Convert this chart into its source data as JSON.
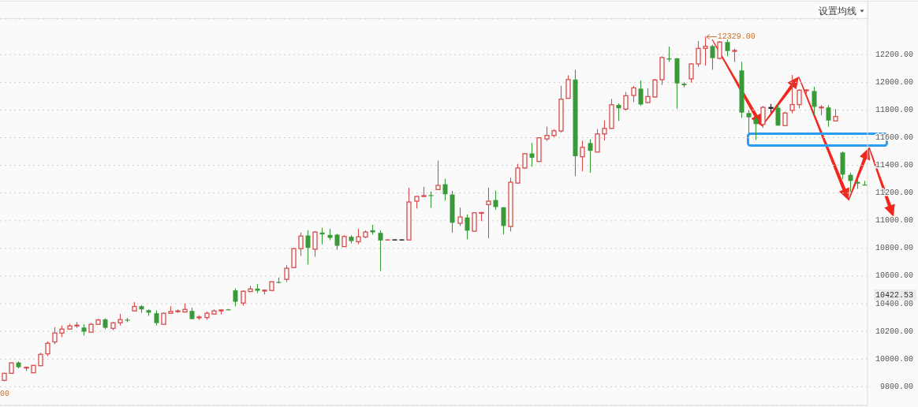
{
  "chart_data": {
    "type": "candlestick",
    "categories": [
      null,
      null,
      null,
      null,
      null,
      null,
      null,
      null,
      null,
      null,
      null,
      null,
      null,
      null,
      null,
      null,
      null,
      null,
      null,
      null,
      null,
      null,
      null,
      null,
      null,
      null,
      null,
      null,
      null,
      null,
      null,
      null,
      null,
      null,
      null,
      null,
      null,
      null,
      null,
      null,
      null,
      null,
      null,
      null,
      null,
      null,
      null,
      null,
      null,
      null,
      null,
      null,
      null,
      null,
      null,
      null,
      null,
      null,
      null,
      null,
      null,
      null,
      null,
      null,
      null,
      null,
      null,
      null,
      null,
      null,
      null,
      null,
      null,
      null,
      null,
      null,
      null,
      null,
      null,
      null,
      null,
      null,
      null,
      null,
      null,
      null,
      null,
      null,
      null,
      null,
      null,
      null,
      null,
      null,
      null,
      null,
      null,
      null,
      null,
      null,
      null,
      null,
      null,
      null,
      null,
      null,
      null,
      null,
      null,
      null,
      null,
      null,
      null,
      null,
      null,
      null,
      null,
      null,
      null,
      null
    ],
    "ohlc": [
      [
        9846,
        9900,
        9840,
        9897
      ],
      [
        9897,
        9975,
        9897,
        9973
      ],
      [
        9975,
        9983,
        9933,
        9941
      ],
      [
        9937,
        9945,
        9914,
        9941
      ],
      [
        9901,
        9954,
        9901,
        9954
      ],
      [
        9952,
        10046,
        9949,
        10034
      ],
      [
        10038,
        10127,
        10021,
        10114
      ],
      [
        10124,
        10230,
        10108,
        10188
      ],
      [
        10188,
        10241,
        10158,
        10217
      ],
      [
        10217,
        10255,
        10215,
        10239
      ],
      [
        10241,
        10268,
        10226,
        10245
      ],
      [
        10228,
        10251,
        10169,
        10198
      ],
      [
        10194,
        10262,
        10192,
        10251
      ],
      [
        10251,
        10291,
        10249,
        10283
      ],
      [
        10287,
        10294,
        10215,
        10226
      ],
      [
        10222,
        10268,
        10209,
        10262
      ],
      [
        10262,
        10327,
        10243,
        10285
      ],
      [
        10285,
        10298,
        10266,
        10279
      ],
      [
        10348,
        10412,
        10346,
        10380
      ],
      [
        10382,
        10390,
        10334,
        10359
      ],
      [
        10353,
        10359,
        10312,
        10336
      ],
      [
        10331,
        10352,
        10243,
        10260
      ],
      [
        10251,
        10336,
        10249,
        10331
      ],
      [
        10331,
        10382,
        10329,
        10344
      ],
      [
        10344,
        10359,
        10334,
        10348
      ],
      [
        10340,
        10401,
        10338,
        10359
      ],
      [
        10348,
        10371,
        10287,
        10289
      ],
      [
        10300,
        10317,
        10283,
        10304
      ],
      [
        10300,
        10344,
        10283,
        10331
      ],
      [
        10325,
        10359,
        10323,
        10348
      ],
      [
        10348,
        10361,
        10323,
        10355
      ],
      [
        10359,
        10363,
        10353,
        10357
      ],
      [
        10496,
        10511,
        10380,
        10414
      ],
      [
        10405,
        10496,
        10386,
        10490
      ],
      [
        10488,
        10530,
        10485,
        10507
      ],
      [
        10509,
        10543,
        10477,
        10494
      ],
      [
        10492,
        10503,
        10467,
        10498
      ],
      [
        10496,
        10560,
        10490,
        10559
      ],
      [
        10557,
        10589,
        10547,
        10551
      ],
      [
        10576,
        10678,
        10557,
        10656
      ],
      [
        10661,
        10802,
        10657,
        10798
      ],
      [
        10798,
        10914,
        10745,
        10889
      ],
      [
        10893,
        10930,
        10684,
        10804
      ],
      [
        10794,
        10924,
        10739,
        10918
      ],
      [
        10914,
        10949,
        10829,
        10901
      ],
      [
        10897,
        10941,
        10859,
        10876
      ],
      [
        10899,
        10905,
        10790,
        10819
      ],
      [
        10813,
        10895,
        10811,
        10886
      ],
      [
        10884,
        10895,
        10836,
        10853
      ],
      [
        10848,
        10943,
        10830,
        10884
      ],
      [
        10882,
        10930,
        10874,
        10918
      ],
      [
        10931,
        10970,
        10899,
        10916
      ],
      [
        10912,
        10930,
        10636,
        10857
      ],
      [
        10861,
        10861,
        10861,
        10861
      ],
      [
        10861,
        10861,
        10861,
        10861
      ],
      [
        10861,
        10861,
        10861,
        10861
      ],
      [
        10861,
        11238,
        10859,
        11135
      ],
      [
        11141,
        11179,
        11088,
        11175
      ],
      [
        11175,
        11244,
        11173,
        11181
      ],
      [
        11185,
        11211,
        11093,
        11181
      ],
      [
        11225,
        11434,
        11221,
        11255
      ],
      [
        11263,
        11303,
        11145,
        11191
      ],
      [
        11189,
        11215,
        10914,
        10985
      ],
      [
        10981,
        11095,
        10962,
        11027
      ],
      [
        11023,
        11046,
        10865,
        10928
      ],
      [
        10924,
        11061,
        10922,
        11057
      ],
      [
        11055,
        11061,
        10996,
        11059
      ],
      [
        11116,
        11238,
        10872,
        11141
      ],
      [
        11149,
        11217,
        11080,
        11099
      ],
      [
        11097,
        11097,
        10901,
        10962
      ],
      [
        10958,
        11311,
        10922,
        11278
      ],
      [
        11272,
        11411,
        11267,
        11381
      ],
      [
        11381,
        11488,
        11373,
        11484
      ],
      [
        11486,
        11562,
        11391,
        11455
      ],
      [
        11428,
        11599,
        11426,
        11599
      ],
      [
        11591,
        11680,
        11576,
        11616
      ],
      [
        11616,
        11661,
        11604,
        11650
      ],
      [
        11648,
        11975,
        11637,
        11878
      ],
      [
        11884,
        12051,
        11882,
        12020
      ],
      [
        12020,
        12091,
        11323,
        11466
      ],
      [
        11462,
        11578,
        11357,
        11530
      ],
      [
        11561,
        11589,
        11346,
        11505
      ],
      [
        11496,
        11663,
        11496,
        11627
      ],
      [
        11627,
        11724,
        11580,
        11667
      ],
      [
        11667,
        11880,
        11663,
        11838
      ],
      [
        11837,
        11848,
        11721,
        11812
      ],
      [
        11806,
        11930,
        11795,
        11903
      ],
      [
        11905,
        11973,
        11857,
        11960
      ],
      [
        11954,
        12013,
        11829,
        11840
      ],
      [
        11854,
        11958,
        11850,
        11897
      ],
      [
        11894,
        12025,
        11888,
        12017
      ],
      [
        12019,
        12188,
        11981,
        12179
      ],
      [
        12173,
        12258,
        12148,
        12165
      ],
      [
        12173,
        12177,
        11810,
        11992
      ],
      [
        11990,
        12000,
        11964,
        11979
      ],
      [
        12025,
        12139,
        11998,
        12133
      ],
      [
        12133,
        12298,
        12112,
        12245
      ],
      [
        12245,
        12329,
        12120,
        12260
      ],
      [
        12262,
        12272,
        12091,
        12175
      ],
      [
        12173,
        12298,
        12165,
        12291
      ],
      [
        12291,
        12310,
        12188,
        12226
      ],
      [
        12226,
        12243,
        12146,
        12230
      ],
      [
        12086,
        12148,
        11743,
        11781
      ],
      [
        11778,
        11797,
        11630,
        11747
      ],
      [
        11734,
        11749,
        11584,
        11698
      ],
      [
        11696,
        11829,
        11671,
        11819
      ],
      [
        11814,
        11844,
        11781,
        11818
      ],
      [
        11816,
        11839,
        11687,
        11687
      ],
      [
        11687,
        11787,
        11685,
        11778
      ],
      [
        11797,
        12053,
        11776,
        11839
      ],
      [
        11839,
        11949,
        11812,
        11943
      ],
      [
        11941,
        11949,
        11918,
        11945
      ],
      [
        11937,
        11968,
        11764,
        11823
      ],
      [
        11818,
        11835,
        11762,
        11821
      ],
      [
        11818,
        11835,
        11679,
        11724
      ],
      [
        11721,
        11806,
        11717,
        11753
      ],
      [
        11493,
        11500,
        11300,
        11333
      ],
      [
        11331,
        11346,
        11208,
        11287
      ],
      [
        11280,
        11297,
        11230,
        11268
      ],
      [
        11261,
        11287,
        11259,
        11259
      ]
    ],
    "colors": [
      "#d94c4c",
      "#d94c4c",
      "#3a9a3a",
      "#d94c4c",
      "#d94c4c",
      "#d94c4c",
      "#d94c4c",
      "#d94c4c",
      "#d94c4c",
      "#d94c4c",
      "#d94c4c",
      "#3a9a3a",
      "#d94c4c",
      "#d94c4c",
      "#3a9a3a",
      "#d94c4c",
      "#d94c4c",
      "#3a9a3a",
      "#d94c4c",
      "#3a9a3a",
      "#3a9a3a",
      "#3a9a3a",
      "#d94c4c",
      "#d94c4c",
      "#d94c4c",
      "#d94c4c",
      "#3a9a3a",
      "#d94c4c",
      "#d94c4c",
      "#d94c4c",
      "#d94c4c",
      "#3a9a3a",
      "#3a9a3a",
      "#d94c4c",
      "#d94c4c",
      "#3a9a3a",
      "#d94c4c",
      "#d94c4c",
      "#3a9a3a",
      "#d94c4c",
      "#d94c4c",
      "#d94c4c",
      "#3a9a3a",
      "#d94c4c",
      "#3a9a3a",
      "#3a9a3a",
      "#3a9a3a",
      "#d94c4c",
      "#3a9a3a",
      "#d94c4c",
      "#d94c4c",
      "#3a9a3a",
      "#3a9a3a",
      "#d94c4c",
      "#222222",
      "#222222",
      "#d94c4c",
      "#d94c4c",
      "#d94c4c",
      "#3a9a3a",
      "#d94c4c",
      "#3a9a3a",
      "#3a9a3a",
      "#d94c4c",
      "#3a9a3a",
      "#d94c4c",
      "#d94c4c",
      "#d94c4c",
      "#3a9a3a",
      "#3a9a3a",
      "#d94c4c",
      "#d94c4c",
      "#d94c4c",
      "#3a9a3a",
      "#d94c4c",
      "#d94c4c",
      "#d94c4c",
      "#d94c4c",
      "#d94c4c",
      "#3a9a3a",
      "#d94c4c",
      "#3a9a3a",
      "#d94c4c",
      "#d94c4c",
      "#d94c4c",
      "#3a9a3a",
      "#d94c4c",
      "#d94c4c",
      "#3a9a3a",
      "#d94c4c",
      "#d94c4c",
      "#d94c4c",
      "#3a9a3a",
      "#3a9a3a",
      "#3a9a3a",
      "#d94c4c",
      "#d94c4c",
      "#d94c4c",
      "#3a9a3a",
      "#d94c4c",
      "#3a9a3a",
      "#d94c4c",
      "#3a9a3a",
      "#3a9a3a",
      "#3a9a3a",
      "#d94c4c",
      "#222222",
      "#3a9a3a",
      "#d94c4c",
      "#d94c4c",
      "#d94c4c",
      "#d94c4c",
      "#3a9a3a",
      "#d94c4c",
      "#3a9a3a",
      "#d94c4c",
      "#3a9a3a",
      "#3a9a3a",
      "#3a9a3a",
      "#3a9a3a"
    ],
    "ylim": [
      9665,
      12458
    ],
    "yticks": [
      {
        "value": 9800,
        "label": "9800.00"
      },
      {
        "value": 10000,
        "label": "10000.00"
      },
      {
        "value": 10200,
        "label": "10200.00"
      },
      {
        "value": 10400,
        "label": "10400.00"
      },
      {
        "value": 10600,
        "label": "10600.00"
      },
      {
        "value": 10800,
        "label": "10800.00"
      },
      {
        "value": 11000,
        "label": "11000.00"
      },
      {
        "value": 11200,
        "label": "11200.00"
      },
      {
        "value": 11400,
        "label": "11400.00"
      },
      {
        "value": 11600,
        "label": "11600.00"
      },
      {
        "value": 11800,
        "label": "11800.00"
      },
      {
        "value": 12000,
        "label": "12000.00"
      },
      {
        "value": 12200,
        "label": "12200.00"
      }
    ],
    "grid": "y",
    "tick_labels": "y",
    "annotations": [
      "设置均线",
      "12329.00",
      "10422.53",
      "00"
    ]
  }
}
